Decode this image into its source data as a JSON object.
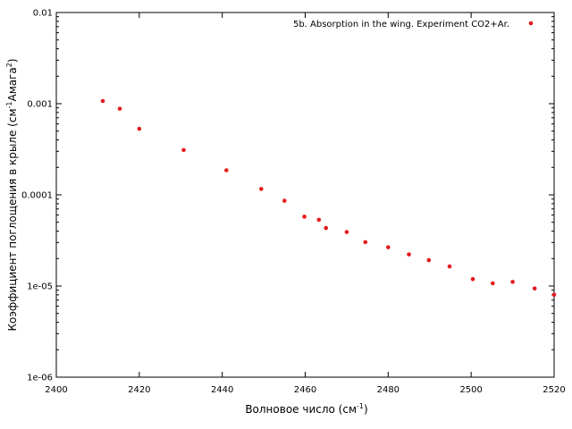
{
  "chart_data": {
    "type": "scatter",
    "title": "",
    "xlabel": {
      "main": "Волновое число (см",
      "sup": "-1",
      "tail": ")"
    },
    "ylabel": {
      "main": "Коэффициент поглощения в крыле (см",
      "sup1": "-1",
      "mid": "Амага",
      "sup2": "2",
      "tail": ")"
    },
    "xlim": [
      2400,
      2520
    ],
    "ylim": [
      1e-06,
      0.01
    ],
    "yscale": "log",
    "grid": false,
    "legend_position": "top-right",
    "x_ticks": [
      2400,
      2420,
      2440,
      2460,
      2480,
      2500,
      2520
    ],
    "x_tick_labels": [
      "2400",
      "2420",
      "2440",
      "2460",
      "2480",
      "2500",
      "2520"
    ],
    "y_ticks": [
      1e-06,
      1e-05,
      0.0001,
      0.001,
      0.01
    ],
    "y_tick_labels": [
      "1e-06",
      "1e-05",
      "0.0001",
      "0.001",
      "0.01"
    ],
    "series": [
      {
        "name": "5b. Absorption in the wing. Experiment CO2+Ar.",
        "color": "#e41a1c",
        "points": [
          [
            2411.2,
            0.00107
          ],
          [
            2415.3,
            0.00088
          ],
          [
            2420.0,
            0.00053
          ],
          [
            2430.7,
            0.00031
          ],
          [
            2441.0,
            0.000186
          ],
          [
            2449.4,
            0.000116
          ],
          [
            2455.0,
            8.62e-05
          ],
          [
            2459.8,
            5.76e-05
          ],
          [
            2463.3,
            5.33e-05
          ],
          [
            2465.0,
            4.33e-05
          ],
          [
            2470.0,
            3.91e-05
          ],
          [
            2474.5,
            3.03e-05
          ],
          [
            2480.0,
            2.66e-05
          ],
          [
            2485.0,
            2.22e-05
          ],
          [
            2489.8,
            1.92e-05
          ],
          [
            2494.8,
            1.64e-05
          ],
          [
            2500.4,
            1.19e-05
          ],
          [
            2505.2,
            1.07e-05
          ],
          [
            2510.0,
            1.11e-05
          ],
          [
            2515.3,
            9.39e-06
          ],
          [
            2520.0,
            8.02e-06
          ]
        ]
      }
    ]
  }
}
